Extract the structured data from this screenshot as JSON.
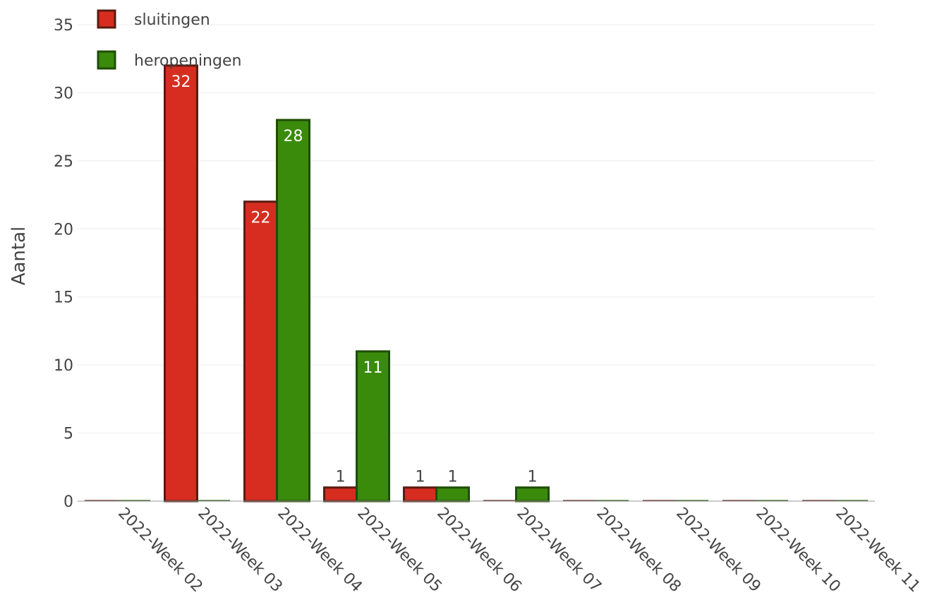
{
  "chart_data": {
    "type": "bar",
    "categories": [
      "2022-Week 02",
      "2022-Week 03",
      "2022-Week 04",
      "2022-Week 05",
      "2022-Week 06",
      "2022-Week 07",
      "2022-Week 08",
      "2022-Week 09",
      "2022-Week 10",
      "2022-Week 11"
    ],
    "series": [
      {
        "name": "sluitingen",
        "values": [
          0,
          32,
          22,
          1,
          1,
          0,
          0,
          0,
          0,
          0
        ],
        "color": "#d62d20",
        "border": "#5a1a12"
      },
      {
        "name": "heropeningen",
        "values": [
          0,
          0,
          28,
          11,
          1,
          1,
          0,
          0,
          0,
          0
        ],
        "color": "#3a8a0c",
        "border": "#1f4d06"
      }
    ],
    "ylabel": "Aantal",
    "ylim": [
      0,
      35
    ],
    "yticks": [
      0,
      5,
      10,
      15,
      20,
      25,
      30,
      35
    ],
    "grid": true,
    "legend_position": "top-left",
    "bar_labels": [
      {
        "series": 0,
        "category": 1,
        "text": "32",
        "position": "inside"
      },
      {
        "series": 0,
        "category": 2,
        "text": "22",
        "position": "inside"
      },
      {
        "series": 1,
        "category": 2,
        "text": "28",
        "position": "inside"
      },
      {
        "series": 1,
        "category": 3,
        "text": "11",
        "position": "inside"
      },
      {
        "series": 0,
        "category": 3,
        "text": "1",
        "position": "outside"
      },
      {
        "series": 0,
        "category": 4,
        "text": "1",
        "position": "outside"
      },
      {
        "series": 1,
        "category": 4,
        "text": "1",
        "position": "outside"
      },
      {
        "series": 1,
        "category": 5,
        "text": "1",
        "position": "outside"
      }
    ]
  }
}
